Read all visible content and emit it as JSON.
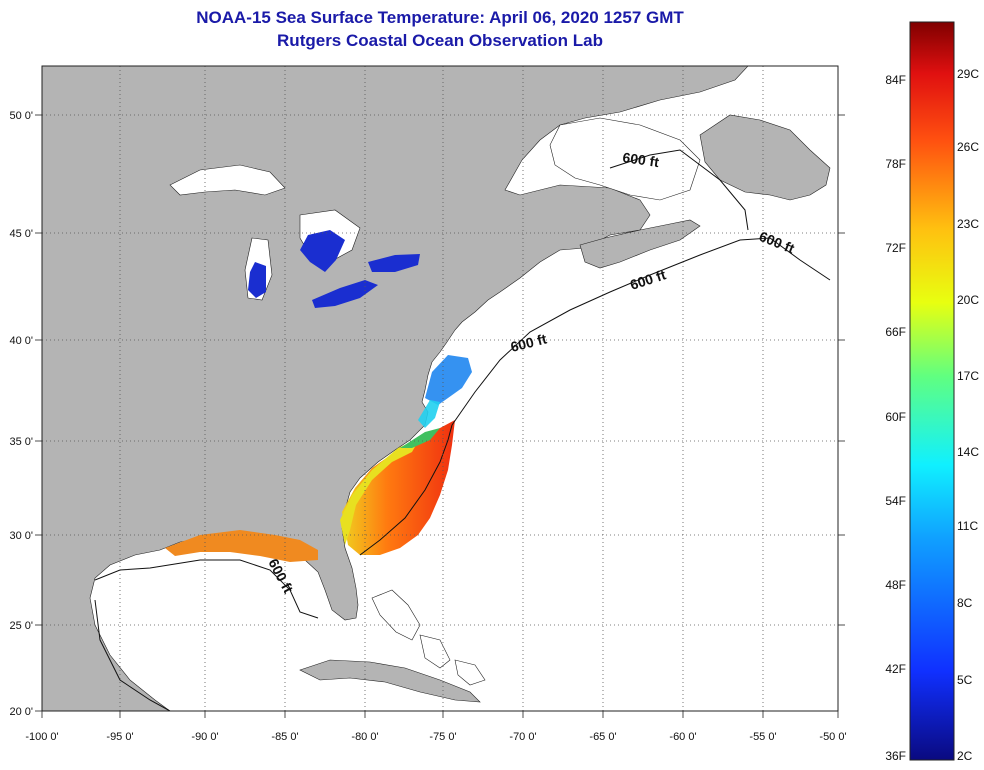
{
  "title": {
    "line1": "NOAA-15 Sea Surface Temperature:  April 06, 2020 1257 GMT",
    "line2": "Rutgers Coastal Ocean Observation Lab"
  },
  "axes": {
    "lat_labels": [
      "50 0'",
      "45 0'",
      "40 0'",
      "35 0'",
      "30 0'",
      "25 0'",
      "20 0'"
    ],
    "lon_labels": [
      "-100 0'",
      "-95 0'",
      "-90 0'",
      "-85 0'",
      "-80 0'",
      "-75 0'",
      "-70 0'",
      "-65 0'",
      "-60 0'",
      "-55 0'",
      "-50 0'"
    ]
  },
  "contour_labels": [
    "600 ft",
    "600 ft",
    "600 ft",
    "600 ft",
    "600 ft"
  ],
  "colorbar": {
    "fahrenheit": [
      "84F",
      "78F",
      "72F",
      "66F",
      "60F",
      "54F",
      "48F",
      "42F",
      "36F"
    ],
    "celsius": [
      "29C",
      "26C",
      "23C",
      "20C",
      "17C",
      "14C",
      "11C",
      "8C",
      "5C",
      "2C"
    ]
  },
  "colors": {
    "land": "#b4b4b4",
    "water": "#ffffff",
    "title": "#1a1aa8",
    "lake_ice_blue": "#1a2ed0"
  }
}
